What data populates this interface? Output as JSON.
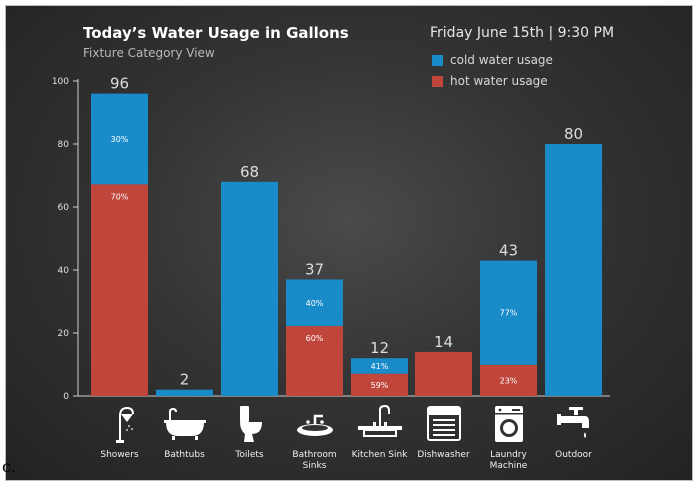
{
  "title": "Today’s Water Usage in Gallons",
  "subtitle": "Fixture Category View",
  "datetime": "Friday June 15th | 9:30 PM",
  "corner_label": "c.",
  "colors": {
    "cold": "#1a8bc9",
    "hot": "#c0463c",
    "background": "#333333",
    "text": "#ffffff"
  },
  "chart_data": {
    "type": "bar",
    "stacked": true,
    "title": "Today’s Water Usage in Gallons",
    "subtitle": "Fixture Category View",
    "categories": [
      "Showers",
      "Bathtubs",
      "Toilets",
      "Bathroom Sinks",
      "Kitchen Sink",
      "Dishwasher",
      "Laundry Machine",
      "Outdoor"
    ],
    "category_labels": [
      "Showers",
      "Bathtubs",
      "Toilets",
      "Bathroom\nSinks",
      "Kitchen Sink",
      "Dishwasher",
      "Laundry\nMachine",
      "Outdoor"
    ],
    "totals": [
      96,
      2,
      68,
      37,
      12,
      14,
      43,
      80
    ],
    "series": [
      {
        "name": "cold water usage",
        "color": "#1a8bc9",
        "values": [
          28.8,
          2,
          68,
          14.8,
          4.92,
          0,
          33.11,
          80
        ],
        "pct_labels": [
          "30%",
          "",
          "",
          "40%",
          "41%",
          "",
          "77%",
          ""
        ]
      },
      {
        "name": "hot water usage",
        "color": "#c0463c",
        "values": [
          67.2,
          0,
          0,
          22.2,
          7.08,
          14,
          9.89,
          0
        ],
        "pct_labels": [
          "70%",
          "",
          "",
          "60%",
          "59%",
          "",
          "23%",
          ""
        ]
      }
    ],
    "yticks": [
      0,
      20,
      40,
      60,
      80,
      100
    ],
    "ylim": [
      0,
      100
    ],
    "xlabel": "",
    "ylabel": "",
    "legend": {
      "placement": "top-right",
      "entries": [
        "cold water usage",
        "hot water usage"
      ]
    },
    "icons": [
      "shower-icon",
      "bathtub-icon",
      "toilet-icon",
      "bathroom-sink-icon",
      "kitchen-sink-icon",
      "dishwasher-icon",
      "laundry-machine-icon",
      "outdoor-faucet-icon"
    ]
  }
}
